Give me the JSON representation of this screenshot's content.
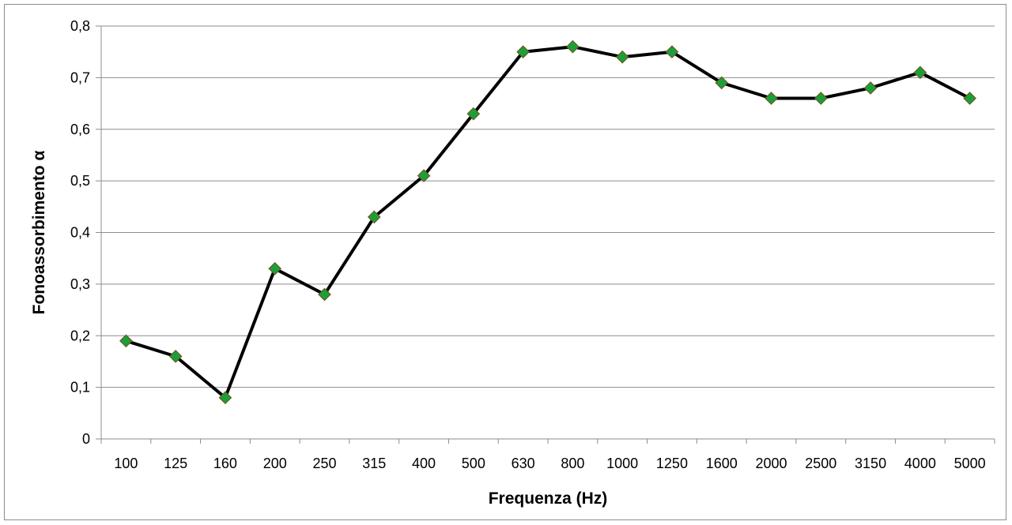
{
  "chart_data": {
    "type": "line",
    "categories": [
      "100",
      "125",
      "160",
      "200",
      "250",
      "315",
      "400",
      "500",
      "630",
      "800",
      "1000",
      "1250",
      "1600",
      "2000",
      "2500",
      "3150",
      "4000",
      "5000"
    ],
    "values": [
      0.19,
      0.16,
      0.08,
      0.33,
      0.28,
      0.43,
      0.51,
      0.63,
      0.75,
      0.76,
      0.74,
      0.75,
      0.69,
      0.66,
      0.66,
      0.68,
      0.71,
      0.66
    ],
    "title": "",
    "xlabel": "Frequenza (Hz)",
    "ylabel": "Fonoassorbimento α",
    "ylim": [
      0,
      0.8
    ],
    "yticks": [
      "0",
      "0,1",
      "0,2",
      "0,3",
      "0,4",
      "0,5",
      "0,6",
      "0,7",
      "0,8"
    ],
    "grid": true,
    "legend": "none",
    "colors": {
      "line": "#000000",
      "marker_fill": "#1aa03a",
      "marker_stroke": "#6b5a1e",
      "grid": "#8c8c8c"
    }
  }
}
